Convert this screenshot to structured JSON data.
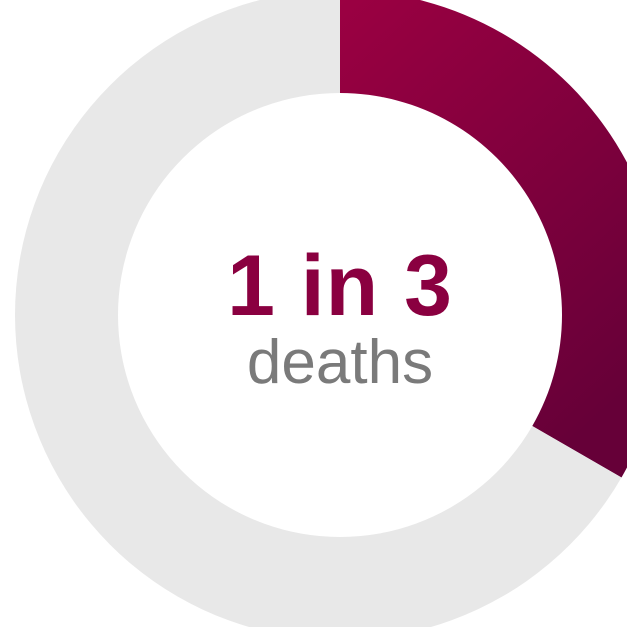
{
  "chart_data": {
    "type": "pie",
    "slices": [
      {
        "value": 0.3333,
        "color": "#9c0042"
      },
      {
        "value": 0.6667,
        "color": "#e8e8e8"
      }
    ],
    "gradient_end_color": "#660038",
    "headline": "1 in 3",
    "subline": "deaths",
    "headline_color": "#8a0040",
    "subline_color": "#7a7a7a"
  }
}
